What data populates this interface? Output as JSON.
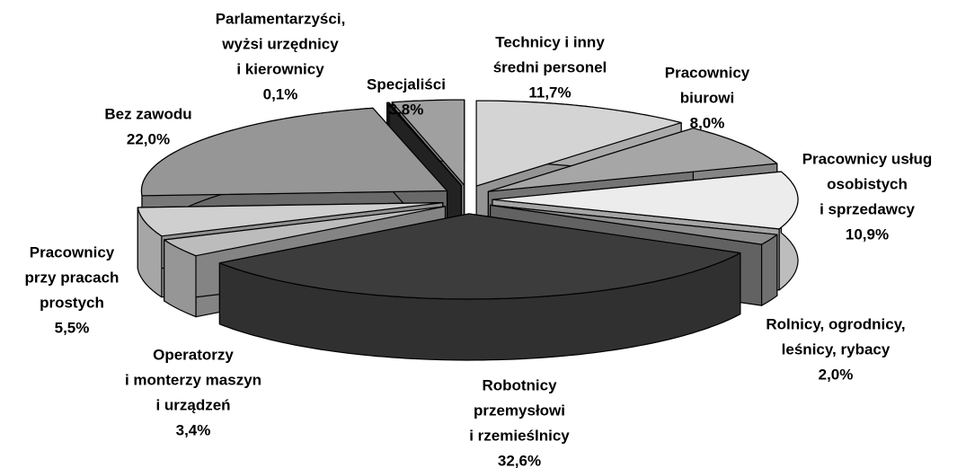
{
  "chart_data": {
    "type": "pie3d",
    "categories": [
      [
        "Technicy i inny",
        "średni personel"
      ],
      [
        "Pracownicy",
        "biurowi"
      ],
      [
        "Pracownicy usług",
        "osobistych",
        "i sprzedawcy"
      ],
      [
        "Rolnicy, ogrodnicy,",
        "leśnicy, rybacy"
      ],
      [
        "Robotnicy",
        "przemysłowi",
        "i rzemieślnicy"
      ],
      [
        "Operatorzy",
        "i monterzy maszyn",
        "i urządzeń"
      ],
      [
        "Pracownicy",
        "przy pracach",
        "prostych"
      ],
      [
        "Bez zawodu"
      ],
      [
        "Parlamentarzyści,",
        "wyżsi urzędnicy",
        "i kierownicy"
      ],
      [
        "Specjaliści"
      ]
    ],
    "values": [
      11.7,
      8.0,
      10.9,
      2.0,
      32.6,
      3.4,
      5.5,
      22.0,
      0.1,
      3.8
    ],
    "value_labels": [
      "11,7%",
      "8,0%",
      "10,9%",
      "2,0%",
      "32,6%",
      "3,4%",
      "5,5%",
      "22,0%",
      "0,1%",
      "3,8%"
    ],
    "colors": [
      "#d4d4d4",
      "#a6a6a6",
      "#ececec",
      "#8c8c8c",
      "#3c3c3c",
      "#bcbcbc",
      "#cfcfcf",
      "#969696",
      "#303030",
      "#a0a0a0"
    ]
  }
}
